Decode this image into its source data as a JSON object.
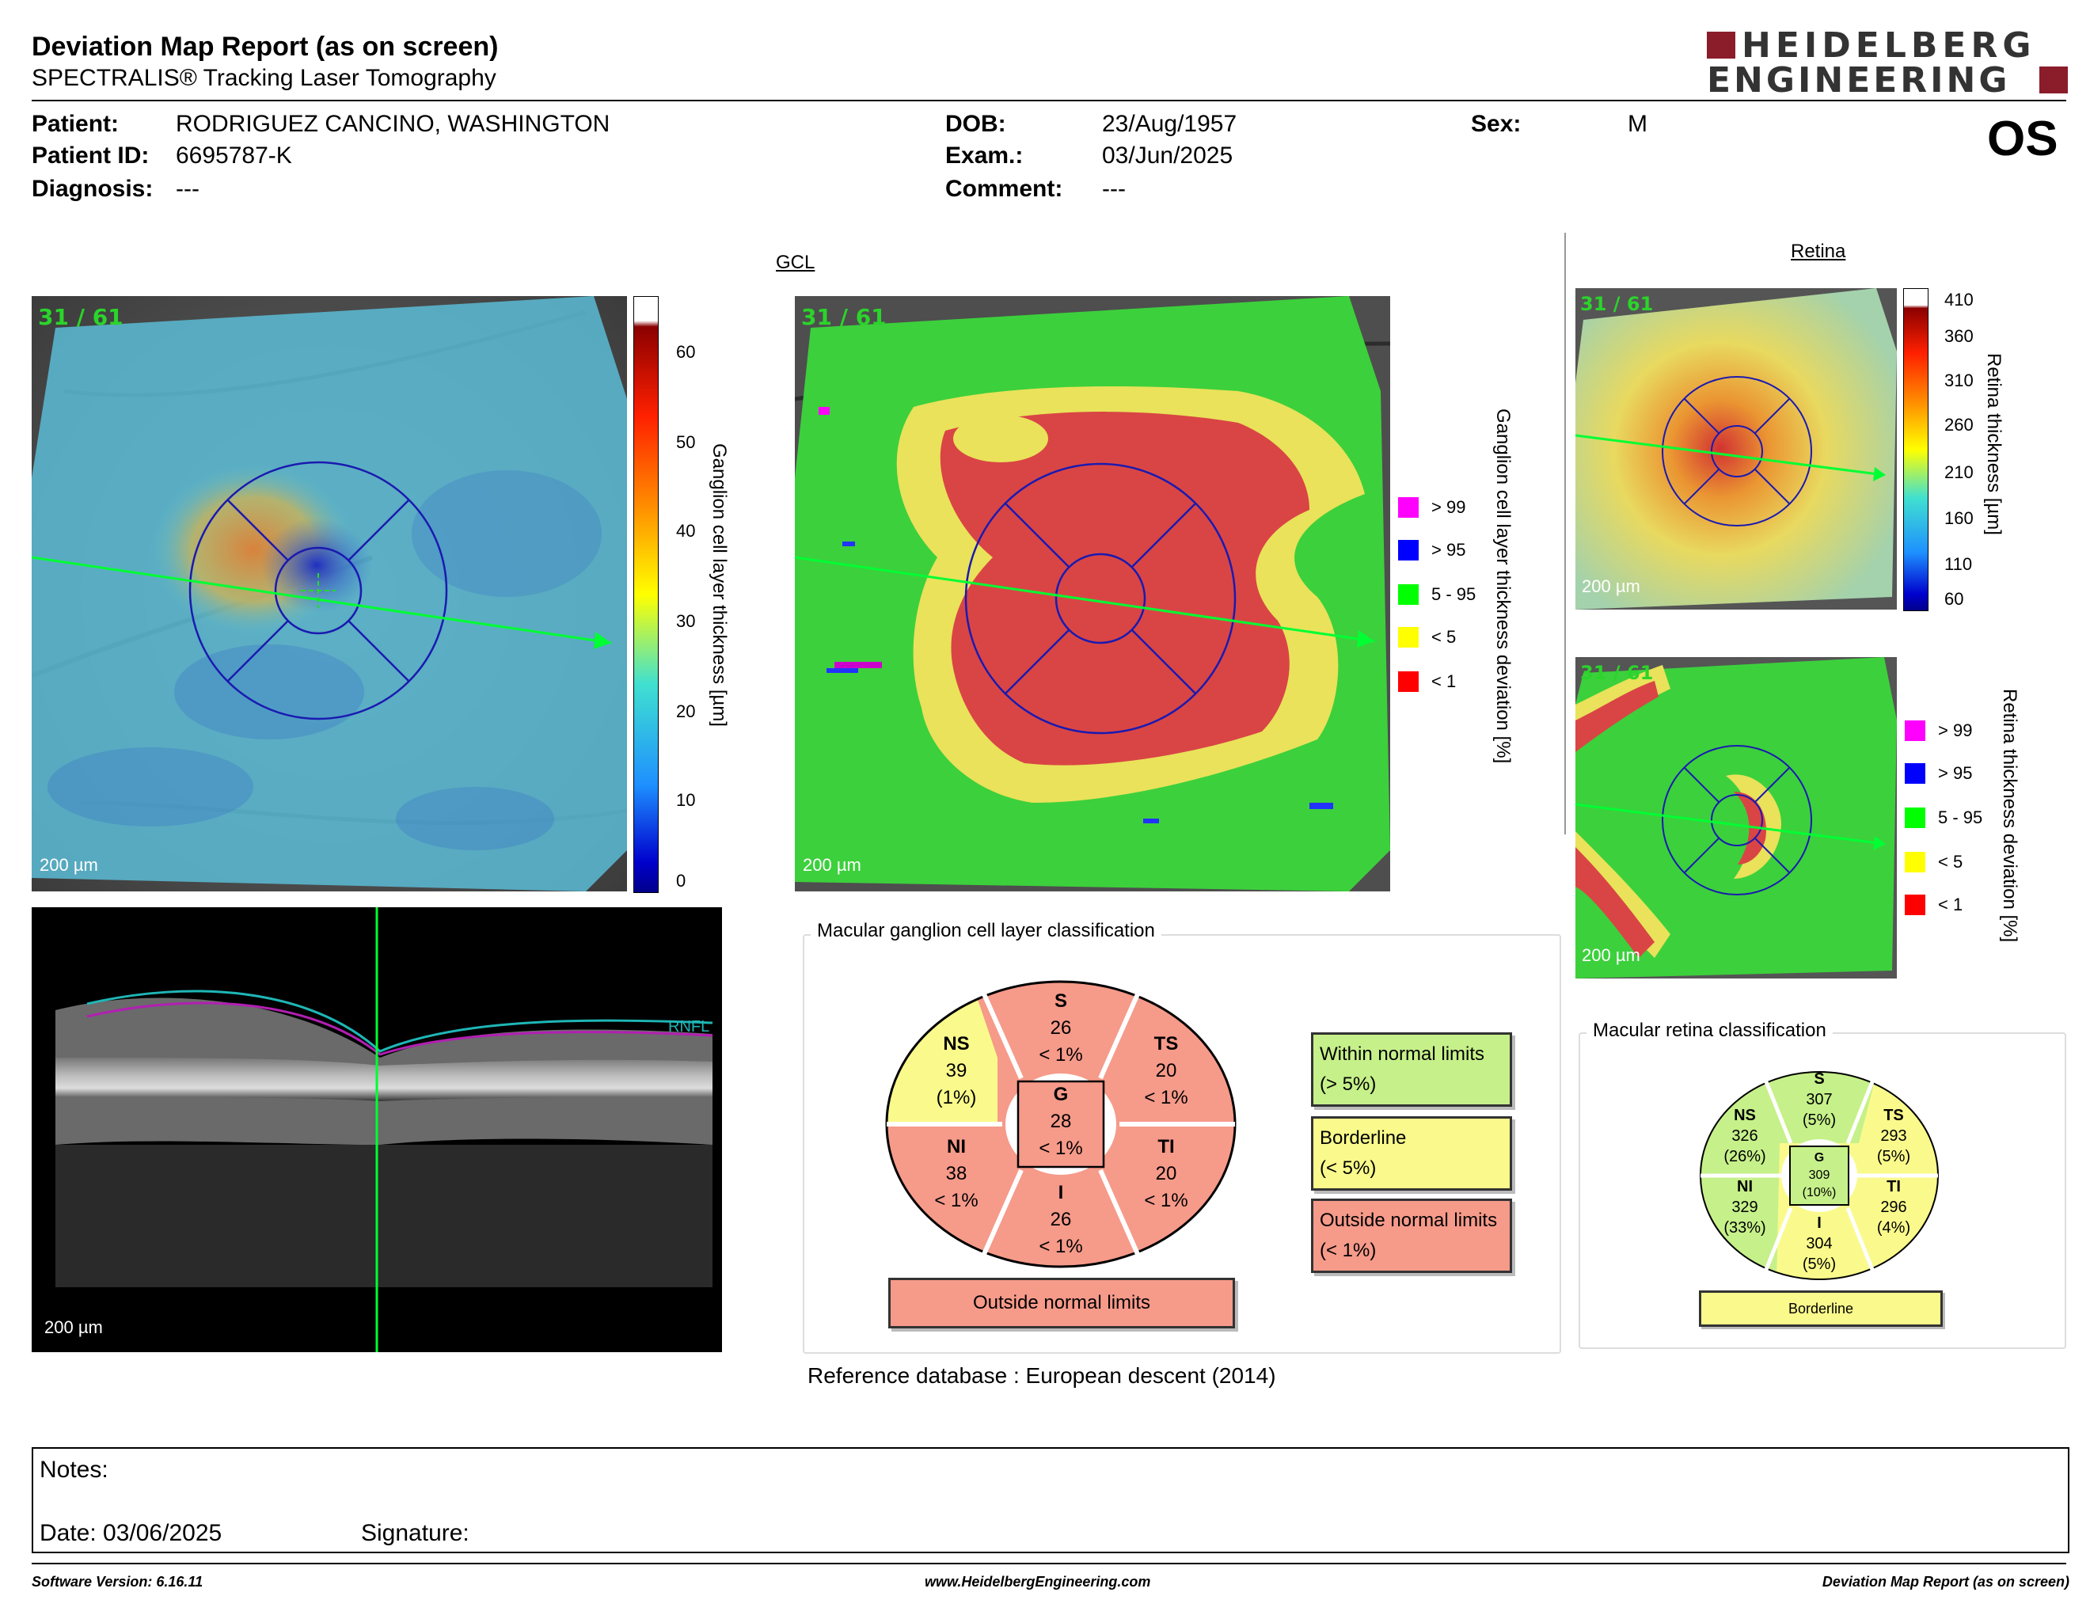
{
  "header": {
    "title": "Deviation Map Report (as on screen)",
    "subtitle": "SPECTRALIS® Tracking Laser Tomography",
    "logo_line1": "HEIDELBERG",
    "logo_line2": "ENGINEERING"
  },
  "patient": {
    "patient_label": "Patient:",
    "patient_value": "RODRIGUEZ CANCINO, WASHINGTON",
    "id_label": "Patient ID:",
    "id_value": "6695787-K",
    "diag_label": "Diagnosis:",
    "diag_value": "---",
    "dob_label": "DOB:",
    "dob_value": "23/Aug/1957",
    "exam_label": "Exam.:",
    "exam_value": "03/Jun/2025",
    "comment_label": "Comment:",
    "comment_value": "---",
    "sex_label": "Sex:",
    "sex_value": "M",
    "eye": "OS"
  },
  "gcl": {
    "title": "GCL",
    "frame_counter": "31 / 61",
    "scale": "200 µm",
    "thickness_axis": "Ganglion cell layer thickness [µm]",
    "thickness_ticks": [
      "60",
      "50",
      "40",
      "30",
      "20",
      "10",
      "0"
    ],
    "deviation_axis": "Ganglion cell layer thickness deviation [%]",
    "legend": [
      {
        "label": "> 99",
        "color": "#ff00ff"
      },
      {
        "label": "> 95",
        "color": "#0000ff"
      },
      {
        "label": "5 - 95",
        "color": "#00ff00"
      },
      {
        "label": "< 5",
        "color": "#ffff00"
      },
      {
        "label": "< 1",
        "color": "#ff0000"
      }
    ]
  },
  "bscan": {
    "layer_label": "RNFL",
    "scale": "200 µm"
  },
  "retina": {
    "title": "Retina",
    "frame_counter": "31 / 61",
    "scale": "200 µm",
    "thickness_axis": "Retina thickness [µm]",
    "thickness_ticks": [
      "410",
      "360",
      "310",
      "260",
      "210",
      "160",
      "110",
      "60"
    ],
    "deviation_axis": "Retina thickness deviation [%]",
    "legend": [
      {
        "label": "> 99",
        "color": "#ff00ff"
      },
      {
        "label": "> 95",
        "color": "#0000ff"
      },
      {
        "label": "5 - 95",
        "color": "#00ff00"
      },
      {
        "label": "< 5",
        "color": "#ffff00"
      },
      {
        "label": "< 1",
        "color": "#ff0000"
      }
    ]
  },
  "gcl_classification": {
    "title": "Macular ganglion cell layer classification",
    "sectors": {
      "S": {
        "name": "S",
        "value": "26",
        "pct": "< 1%"
      },
      "NS": {
        "name": "NS",
        "value": "39",
        "pct": "(1%)"
      },
      "TS": {
        "name": "TS",
        "value": "20",
        "pct": "< 1%"
      },
      "G": {
        "name": "G",
        "value": "28",
        "pct": "< 1%"
      },
      "NI": {
        "name": "NI",
        "value": "38",
        "pct": "< 1%"
      },
      "TI": {
        "name": "TI",
        "value": "20",
        "pct": "< 1%"
      },
      "I": {
        "name": "I",
        "value": "26",
        "pct": "< 1%"
      }
    },
    "result": "Outside normal limits",
    "legend": {
      "within_1": "Within normal limits",
      "within_2": "(> 5%)",
      "border_1": "Borderline",
      "border_2": "(< 5%)",
      "outside_1": "Outside normal limits",
      "outside_2": "(< 1%)"
    },
    "colors": {
      "green": "#c6f08a",
      "yellow": "#fafa8c",
      "red": "#f69a8a"
    }
  },
  "retina_classification": {
    "title": "Macular retina classification",
    "sectors": {
      "S": {
        "name": "S",
        "value": "307",
        "pct": "(5%)"
      },
      "NS": {
        "name": "NS",
        "value": "326",
        "pct": "(26%)"
      },
      "TS": {
        "name": "TS",
        "value": "293",
        "pct": "(5%)"
      },
      "G": {
        "name": "G",
        "value": "309",
        "pct": "(10%)"
      },
      "NI": {
        "name": "NI",
        "value": "329",
        "pct": "(33%)"
      },
      "TI": {
        "name": "TI",
        "value": "296",
        "pct": "(4%)"
      },
      "I": {
        "name": "I",
        "value": "304",
        "pct": "(5%)"
      }
    },
    "result": "Borderline"
  },
  "reference": {
    "label": "Reference database",
    "value": "European descent (2014)"
  },
  "notes": {
    "notes_label": "Notes:",
    "date_label": "Date: 03/06/2025",
    "signature_label": "Signature:"
  },
  "footer": {
    "software": "Software Version: 6.16.11",
    "website": "www.HeidelbergEngineering.com",
    "report": "Deviation Map Report (as on screen)"
  }
}
